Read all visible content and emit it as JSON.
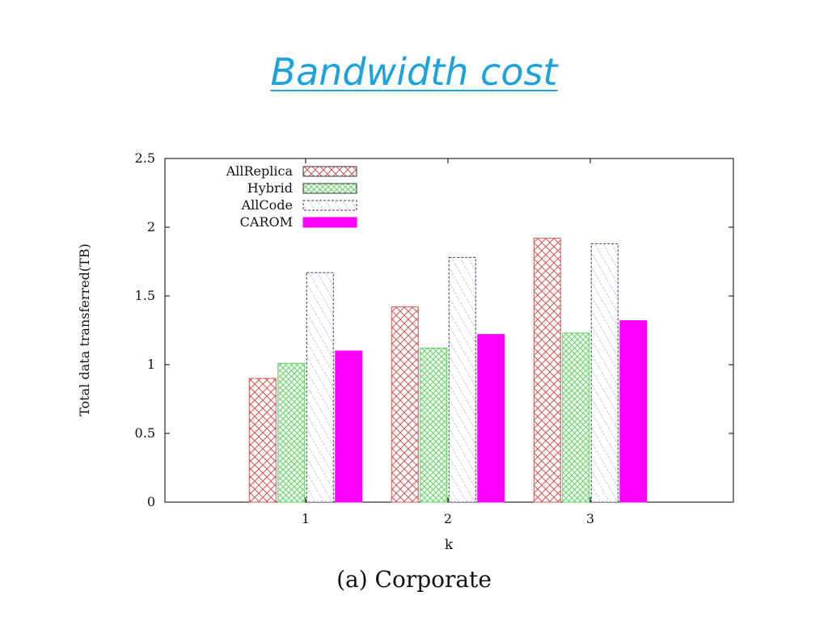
{
  "slide": {
    "title": "Bandwidth cost"
  },
  "chart_data": {
    "type": "bar",
    "caption": "(a)  Corporate",
    "xlabel": "k",
    "ylabel": "Total data transferred(TB)",
    "categories": [
      "1",
      "2",
      "3"
    ],
    "ylim": [
      0,
      2.5
    ],
    "yticks": [
      "0",
      "0.5",
      "1",
      "1.5",
      "2",
      "2.5"
    ],
    "grid": false,
    "legend_position": "top-left",
    "series": [
      {
        "name": "AllReplica",
        "values": [
          0.9,
          1.42,
          1.92
        ],
        "color": "#d9534f",
        "pattern": "crosshatch"
      },
      {
        "name": "Hybrid",
        "values": [
          1.01,
          1.12,
          1.23
        ],
        "color": "#5cd65c",
        "pattern": "crosshatch-fine"
      },
      {
        "name": "AllCode",
        "values": [
          1.67,
          1.78,
          1.88
        ],
        "color": "#6b6b9a",
        "pattern": "diagonal-dashed"
      },
      {
        "name": "CAROM",
        "values": [
          1.1,
          1.22,
          1.32
        ],
        "color": "#ff00ff",
        "pattern": "solid"
      }
    ]
  }
}
